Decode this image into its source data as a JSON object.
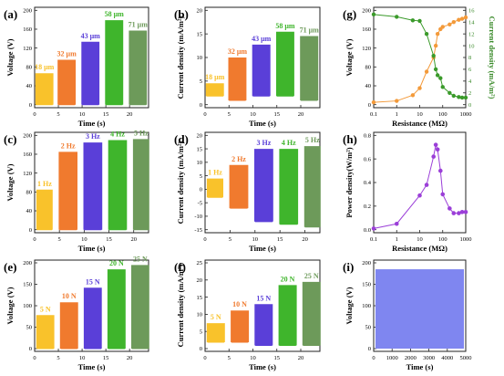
{
  "panels": {
    "a": {
      "letter": "(a)",
      "ylabel": "Voltage (V)",
      "xlabel": "Time (s)",
      "yticks": [
        "0",
        "40",
        "80",
        "120",
        "160",
        "200"
      ],
      "xticks": [
        "0",
        "5",
        "10",
        "15",
        "20"
      ],
      "groups": [
        "18 μm",
        "32 μm",
        "43 μm",
        "58 μm",
        "71 μm"
      ]
    },
    "b": {
      "letter": "(b)",
      "ylabel": "Current density (mA/m²)",
      "xlabel": "Time (s)",
      "yticks": [
        "0",
        "5",
        "10",
        "15",
        "20"
      ],
      "xticks": [
        "0",
        "5",
        "10",
        "15",
        "20"
      ],
      "groups": [
        "18 μm",
        "32 μm",
        "43 μm",
        "58 μm",
        "71 μm"
      ]
    },
    "c": {
      "letter": "(c)",
      "ylabel": "Voltage (V)",
      "xlabel": "Time (s)",
      "yticks": [
        "0",
        "40",
        "80",
        "120",
        "160",
        "200"
      ],
      "xticks": [
        "0",
        "5",
        "10",
        "15",
        "20"
      ],
      "groups": [
        "1 Hz",
        "2 Hz",
        "3 Hz",
        "4 Hz",
        "5 Hz"
      ]
    },
    "d": {
      "letter": "(d)",
      "ylabel": "Current density (mA/m²)",
      "xlabel": "Time (s)",
      "yticks": [
        "-15",
        "-10",
        "-5",
        "0",
        "5",
        "10",
        "15",
        "20"
      ],
      "xticks": [
        "0",
        "5",
        "10",
        "15",
        "20"
      ],
      "groups": [
        "1 Hz",
        "2 Hz",
        "3 Hz",
        "4 Hz",
        "5 Hz"
      ]
    },
    "e": {
      "letter": "(e)",
      "ylabel": "Voltage (V)",
      "xlabel": "Time (s)",
      "yticks": [
        "0",
        "50",
        "100",
        "150",
        "200"
      ],
      "xticks": [
        "0",
        "5",
        "10",
        "15",
        "20"
      ],
      "groups": [
        "5 N",
        "10 N",
        "15 N",
        "20 N",
        "25 N"
      ]
    },
    "f": {
      "letter": "(f)",
      "ylabel": "Current density (mA/m²)",
      "xlabel": "Time (s)",
      "yticks": [
        "0",
        "5",
        "10",
        "15",
        "20",
        "25"
      ],
      "xticks": [
        "0",
        "5",
        "10",
        "15",
        "20"
      ],
      "groups": [
        "5 N",
        "10 N",
        "15 N",
        "20 N",
        "25 N"
      ]
    },
    "g": {
      "letter": "(g)",
      "ylabel": "Voltage (V)",
      "ylabel2": "Current density (mA/m²)",
      "xlabel": "Resistance (MΩ)",
      "yticks": [
        "0",
        "40",
        "80",
        "120",
        "160",
        "200"
      ],
      "yticks2": [
        "0",
        "2",
        "4",
        "6",
        "8",
        "10",
        "12",
        "14",
        "16"
      ],
      "xticks": [
        "0.1",
        "1",
        "10",
        "100",
        "1000"
      ]
    },
    "h": {
      "letter": "(h)",
      "ylabel": "Power density(W/m²)",
      "xlabel": "Resistance (MΩ)",
      "yticks": [
        "0.0",
        "0.2",
        "0.4",
        "0.6",
        "0.8"
      ],
      "xticks": [
        "0.1",
        "1",
        "10",
        "100",
        "1000"
      ]
    },
    "i": {
      "letter": "(i)",
      "ylabel": "Voltage (V)",
      "xlabel": "Time (s)",
      "yticks": [
        "0",
        "50",
        "100",
        "150",
        "200"
      ],
      "xticks": [
        "0",
        "1000",
        "2000",
        "3000",
        "4000",
        "5000"
      ]
    }
  },
  "colors": [
    "#f9c22b",
    "#f07a2e",
    "#5a3fd8",
    "#3fb52c",
    "#6d9a5a"
  ],
  "chart_data": [
    {
      "panel": "a",
      "type": "line",
      "x_range": [
        0,
        24
      ],
      "ylim": [
        0,
        210
      ],
      "series": [
        {
          "name": "18 μm",
          "x_range": [
            0.3,
            3.8
          ],
          "amplitude": 70
        },
        {
          "name": "32 μm",
          "x_range": [
            5,
            8.5
          ],
          "amplitude": 100
        },
        {
          "name": "43 μm",
          "x_range": [
            10,
            13.5
          ],
          "amplitude": 140
        },
        {
          "name": "58 μm",
          "x_range": [
            15,
            18.5
          ],
          "amplitude": 188
        },
        {
          "name": "71 μm",
          "x_range": [
            20,
            23.5
          ],
          "amplitude": 165
        }
      ]
    },
    {
      "panel": "b",
      "type": "line",
      "x_range": [
        0,
        24
      ],
      "ylim": [
        -2,
        20
      ],
      "series": [
        {
          "name": "18 μm",
          "x_range": [
            0.3,
            3.8
          ],
          "max": 3,
          "min": 0
        },
        {
          "name": "32 μm",
          "x_range": [
            5,
            8.5
          ],
          "max": 9,
          "min": -1
        },
        {
          "name": "43 μm",
          "x_range": [
            10,
            13.5
          ],
          "max": 12,
          "min": 0
        },
        {
          "name": "58 μm",
          "x_range": [
            15,
            18.5
          ],
          "max": 15,
          "min": 0
        },
        {
          "name": "71 μm",
          "x_range": [
            20,
            23.5
          ],
          "max": 14,
          "min": -1
        }
      ]
    },
    {
      "panel": "c",
      "type": "line",
      "x_range": [
        0,
        23
      ],
      "ylim": [
        0,
        200
      ],
      "series": [
        {
          "name": "1 Hz",
          "x_range": [
            0.5,
            3.5
          ],
          "amplitude": 85
        },
        {
          "name": "2 Hz",
          "x_range": [
            5,
            8.5
          ],
          "amplitude": 165
        },
        {
          "name": "3 Hz",
          "x_range": [
            10,
            13.5
          ],
          "amplitude": 185
        },
        {
          "name": "4 Hz",
          "x_range": [
            15,
            18.5
          ],
          "amplitude": 190
        },
        {
          "name": "5 Hz",
          "x_range": [
            20,
            23
          ],
          "amplitude": 192
        }
      ]
    },
    {
      "panel": "d",
      "type": "line",
      "x_range": [
        0,
        23
      ],
      "ylim": [
        -15,
        20
      ],
      "series": [
        {
          "name": "1 Hz",
          "x_range": [
            0.5,
            3.5
          ],
          "max": 4,
          "min": -3
        },
        {
          "name": "2 Hz",
          "x_range": [
            5,
            8.5
          ],
          "max": 9,
          "min": -7
        },
        {
          "name": "3 Hz",
          "x_range": [
            10,
            13.5
          ],
          "max": 15,
          "min": -12
        },
        {
          "name": "4 Hz",
          "x_range": [
            15,
            18.5
          ],
          "max": 15,
          "min": -13
        },
        {
          "name": "5 Hz",
          "x_range": [
            20,
            23
          ],
          "max": 16,
          "min": -14
        }
      ]
    },
    {
      "panel": "e",
      "type": "line",
      "x_range": [
        0,
        24
      ],
      "ylim": [
        0,
        200
      ],
      "series": [
        {
          "name": "5 N",
          "x_range": [
            0.5,
            4
          ],
          "amplitude": 78
        },
        {
          "name": "10 N",
          "x_range": [
            5.5,
            9
          ],
          "amplitude": 108
        },
        {
          "name": "15 N",
          "x_range": [
            10.5,
            14
          ],
          "amplitude": 142
        },
        {
          "name": "20 N",
          "x_range": [
            15.5,
            19
          ],
          "amplitude": 185
        },
        {
          "name": "25 N",
          "x_range": [
            20.5,
            24
          ],
          "amplitude": 195
        }
      ]
    },
    {
      "panel": "f",
      "type": "line",
      "x_range": [
        0,
        24
      ],
      "ylim": [
        -2,
        25
      ],
      "series": [
        {
          "name": "5 N",
          "x_range": [
            0.5,
            4
          ],
          "max": 6,
          "min": 0
        },
        {
          "name": "10 N",
          "x_range": [
            5.5,
            9
          ],
          "max": 10,
          "min": 0
        },
        {
          "name": "15 N",
          "x_range": [
            10.5,
            14
          ],
          "max": 12,
          "min": -1
        },
        {
          "name": "20 N",
          "x_range": [
            15.5,
            19
          ],
          "max": 18,
          "min": -1
        },
        {
          "name": "25 N",
          "x_range": [
            20.5,
            24
          ],
          "max": 19,
          "min": -1
        }
      ]
    },
    {
      "panel": "g",
      "type": "line",
      "x_scale": "log",
      "x_range": [
        0.1,
        1000
      ],
      "ylim": [
        0,
        200
      ],
      "y2lim": [
        0,
        16
      ],
      "series": [
        {
          "axis": "left",
          "x": [
            0.1,
            1,
            5,
            10,
            20,
            40,
            50,
            60,
            80,
            100,
            200,
            300,
            500,
            700,
            1000
          ],
          "y": [
            5,
            8,
            20,
            35,
            70,
            100,
            125,
            150,
            160,
            165,
            170,
            175,
            180,
            182,
            185
          ]
        },
        {
          "axis": "right",
          "x": [
            0.1,
            1,
            5,
            10,
            20,
            40,
            50,
            60,
            80,
            100,
            200,
            300,
            500,
            700,
            1000
          ],
          "y": [
            15.3,
            14.9,
            14.3,
            14.2,
            12,
            8.3,
            6,
            5,
            4.5,
            3,
            2,
            1.5,
            1.3,
            1.2,
            1.2
          ]
        }
      ]
    },
    {
      "panel": "h",
      "type": "line",
      "x_scale": "log",
      "x_range": [
        0.1,
        1000
      ],
      "ylim": [
        0,
        0.8
      ],
      "series": [
        {
          "x": [
            0.1,
            1,
            10,
            20,
            40,
            50,
            60,
            80,
            100,
            200,
            300,
            500,
            700,
            1000
          ],
          "y": [
            0.01,
            0.05,
            0.29,
            0.38,
            0.62,
            0.72,
            0.68,
            0.5,
            0.3,
            0.18,
            0.14,
            0.14,
            0.15,
            0.15
          ]
        }
      ]
    },
    {
      "panel": "i",
      "type": "area",
      "x_range": [
        0,
        5000
      ],
      "ylim": [
        0,
        200
      ],
      "series": [
        {
          "x_range": [
            0,
            5000
          ],
          "max": 185,
          "min": 0
        }
      ]
    }
  ]
}
